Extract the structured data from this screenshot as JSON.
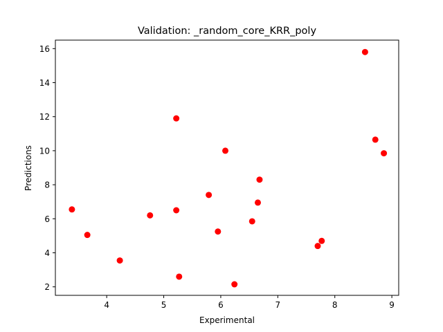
{
  "chart_data": {
    "type": "scatter",
    "title": "Validation: _random_core_KRR_poly",
    "xlabel": "Experimental",
    "ylabel": "Predictions",
    "xlim": [
      3.1,
      9.12
    ],
    "ylim": [
      1.5,
      16.5
    ],
    "xticks": [
      4,
      5,
      6,
      7,
      8,
      9
    ],
    "yticks": [
      2,
      4,
      6,
      8,
      10,
      12,
      14,
      16
    ],
    "grid": false,
    "marker_color": "#ff0000",
    "points": [
      {
        "x": 3.39,
        "y": 6.55
      },
      {
        "x": 3.66,
        "y": 5.05
      },
      {
        "x": 4.23,
        "y": 3.55
      },
      {
        "x": 4.76,
        "y": 6.2
      },
      {
        "x": 5.22,
        "y": 11.9
      },
      {
        "x": 5.22,
        "y": 6.5
      },
      {
        "x": 5.27,
        "y": 2.6
      },
      {
        "x": 5.79,
        "y": 7.4
      },
      {
        "x": 5.95,
        "y": 5.25
      },
      {
        "x": 6.08,
        "y": 10.0
      },
      {
        "x": 6.24,
        "y": 2.15
      },
      {
        "x": 6.55,
        "y": 5.85
      },
      {
        "x": 6.65,
        "y": 6.95
      },
      {
        "x": 6.68,
        "y": 8.3
      },
      {
        "x": 7.7,
        "y": 4.4
      },
      {
        "x": 7.77,
        "y": 4.7
      },
      {
        "x": 8.53,
        "y": 15.8
      },
      {
        "x": 8.71,
        "y": 10.65
      },
      {
        "x": 8.86,
        "y": 9.85
      }
    ]
  }
}
